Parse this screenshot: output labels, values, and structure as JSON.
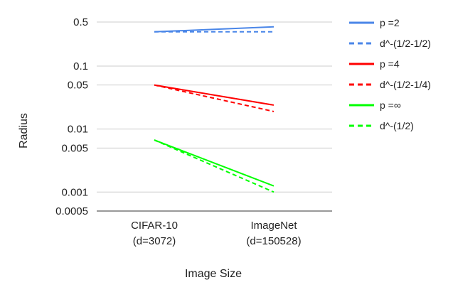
{
  "chart_data": {
    "type": "line",
    "xlabel": "Image Size",
    "ylabel": "Radius",
    "categories": [
      [
        "CIFAR-10",
        "(d=3072)"
      ],
      [
        "ImageNet",
        "(d=150528)"
      ]
    ],
    "y_scale": "log",
    "ylim": [
      0.0005,
      1
    ],
    "yticks": [
      0.5,
      0.1,
      0.05,
      0.01,
      0.005,
      0.001,
      0.0005
    ],
    "ytick_labels": [
      "0.5",
      "0.1",
      "0.05",
      "0.01",
      "0.005",
      "0.001",
      "0.0005"
    ],
    "grid": true,
    "legend_position": "right",
    "series": [
      {
        "name": "p =2",
        "values": [
          0.35,
          0.42
        ],
        "color": "#4a86e8",
        "dashed": false
      },
      {
        "name": "d^-(1/2-1/2)",
        "values": [
          0.35,
          0.35
        ],
        "color": "#4a86e8",
        "dashed": true
      },
      {
        "name": "p =4",
        "values": [
          0.05,
          0.024
        ],
        "color": "#ff0000",
        "dashed": false
      },
      {
        "name": "d^-(1/2-1/4)",
        "values": [
          0.05,
          0.019
        ],
        "color": "#ff0000",
        "dashed": true
      },
      {
        "name": "p =∞",
        "values": [
          0.0067,
          0.00125
        ],
        "color": "#00ff00",
        "dashed": false
      },
      {
        "name": "d^-(1/2)",
        "values": [
          0.0067,
          0.001
        ],
        "color": "#00ff00",
        "dashed": true
      }
    ]
  }
}
